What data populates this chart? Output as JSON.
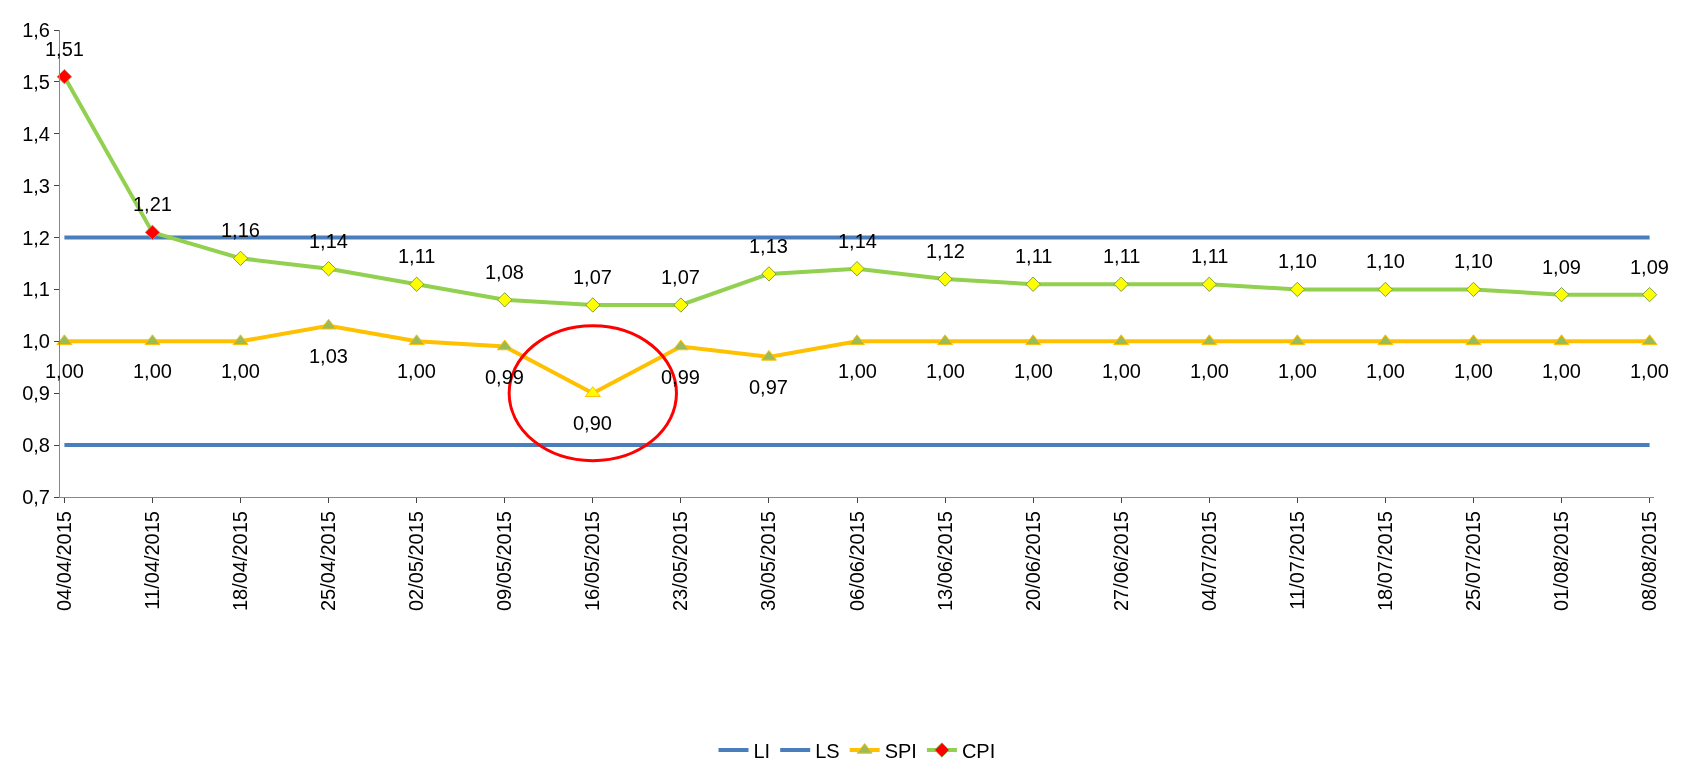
{
  "chart_data": {
    "type": "line",
    "categories": [
      "04/04/2015",
      "11/04/2015",
      "18/04/2015",
      "25/04/2015",
      "02/05/2015",
      "09/05/2015",
      "16/05/2015",
      "23/05/2015",
      "30/05/2015",
      "06/06/2015",
      "13/06/2015",
      "20/06/2015",
      "27/06/2015",
      "04/07/2015",
      "11/07/2015",
      "18/07/2015",
      "25/07/2015",
      "01/08/2015",
      "08/08/2015"
    ],
    "series": [
      {
        "name": "LI",
        "color": "#4a7ebb",
        "marker": "none",
        "values": [
          0.8,
          0.8,
          0.8,
          0.8,
          0.8,
          0.8,
          0.8,
          0.8,
          0.8,
          0.8,
          0.8,
          0.8,
          0.8,
          0.8,
          0.8,
          0.8,
          0.8,
          0.8,
          0.8
        ]
      },
      {
        "name": "LS",
        "color": "#4a7ebb",
        "marker": "none",
        "values": [
          1.2,
          1.2,
          1.2,
          1.2,
          1.2,
          1.2,
          1.2,
          1.2,
          1.2,
          1.2,
          1.2,
          1.2,
          1.2,
          1.2,
          1.2,
          1.2,
          1.2,
          1.2,
          1.2
        ]
      },
      {
        "name": "SPI",
        "color": "#ffc000",
        "marker": "triangle",
        "colors": [
          "#9bbb59",
          "#9bbb59",
          "#9bbb59",
          "#9bbb59",
          "#9bbb59",
          "#9bbb59",
          "#ffff00",
          "#9bbb59",
          "#9bbb59",
          "#9bbb59",
          "#9bbb59",
          "#9bbb59",
          "#9bbb59",
          "#9bbb59",
          "#9bbb59",
          "#9bbb59",
          "#9bbb59",
          "#9bbb59",
          "#9bbb59"
        ],
        "values": [
          1.0,
          1.0,
          1.0,
          1.03,
          1.0,
          0.99,
          0.9,
          0.99,
          0.97,
          1.0,
          1.0,
          1.0,
          1.0,
          1.0,
          1.0,
          1.0,
          1.0,
          1.0,
          1.0
        ],
        "value_labels": [
          "1,00",
          "1,00",
          "1,00",
          "1,03",
          "1,00",
          "0,99",
          "0,90",
          "0,99",
          "0,97",
          "1,00",
          "1,00",
          "1,00",
          "1,00",
          "1,00",
          "1,00",
          "1,00",
          "1,00",
          "1,00",
          "1,00"
        ]
      },
      {
        "name": "CPI",
        "color": "#92d050",
        "marker": "diamond",
        "colors": [
          "#ff0000",
          "#ff0000",
          "#ffff00",
          "#ffff00",
          "#ffff00",
          "#ffff00",
          "#ffff00",
          "#ffff00",
          "#ffff00",
          "#ffff00",
          "#ffff00",
          "#ffff00",
          "#ffff00",
          "#ffff00",
          "#ffff00",
          "#ffff00",
          "#ffff00",
          "#ffff00",
          "#ffff00"
        ],
        "values": [
          1.51,
          1.21,
          1.16,
          1.14,
          1.11,
          1.08,
          1.07,
          1.07,
          1.13,
          1.14,
          1.12,
          1.11,
          1.11,
          1.11,
          1.1,
          1.1,
          1.1,
          1.09,
          1.09
        ],
        "value_labels": [
          "1,51",
          "1,21",
          "1,16",
          "1,14",
          "1,11",
          "1,08",
          "1,07",
          "1,07",
          "1,13",
          "1,14",
          "1,12",
          "1,11",
          "1,11",
          "1,11",
          "1,10",
          "1,10",
          "1,10",
          "1,09",
          "1,09"
        ]
      }
    ],
    "ylim": [
      0.7,
      1.6
    ],
    "yticks": [
      {
        "value": 0.7,
        "label": "0,7"
      },
      {
        "value": 0.8,
        "label": "0,8"
      },
      {
        "value": 0.9,
        "label": "0,9"
      },
      {
        "value": 1.0,
        "label": "1,0"
      },
      {
        "value": 1.1,
        "label": "1,1"
      },
      {
        "value": 1.2,
        "label": "1,2"
      },
      {
        "value": 1.3,
        "label": "1,3"
      },
      {
        "value": 1.4,
        "label": "1,4"
      },
      {
        "value": 1.5,
        "label": "1,5"
      },
      {
        "value": 1.6,
        "label": "1,6"
      }
    ],
    "legend": "bottom"
  }
}
